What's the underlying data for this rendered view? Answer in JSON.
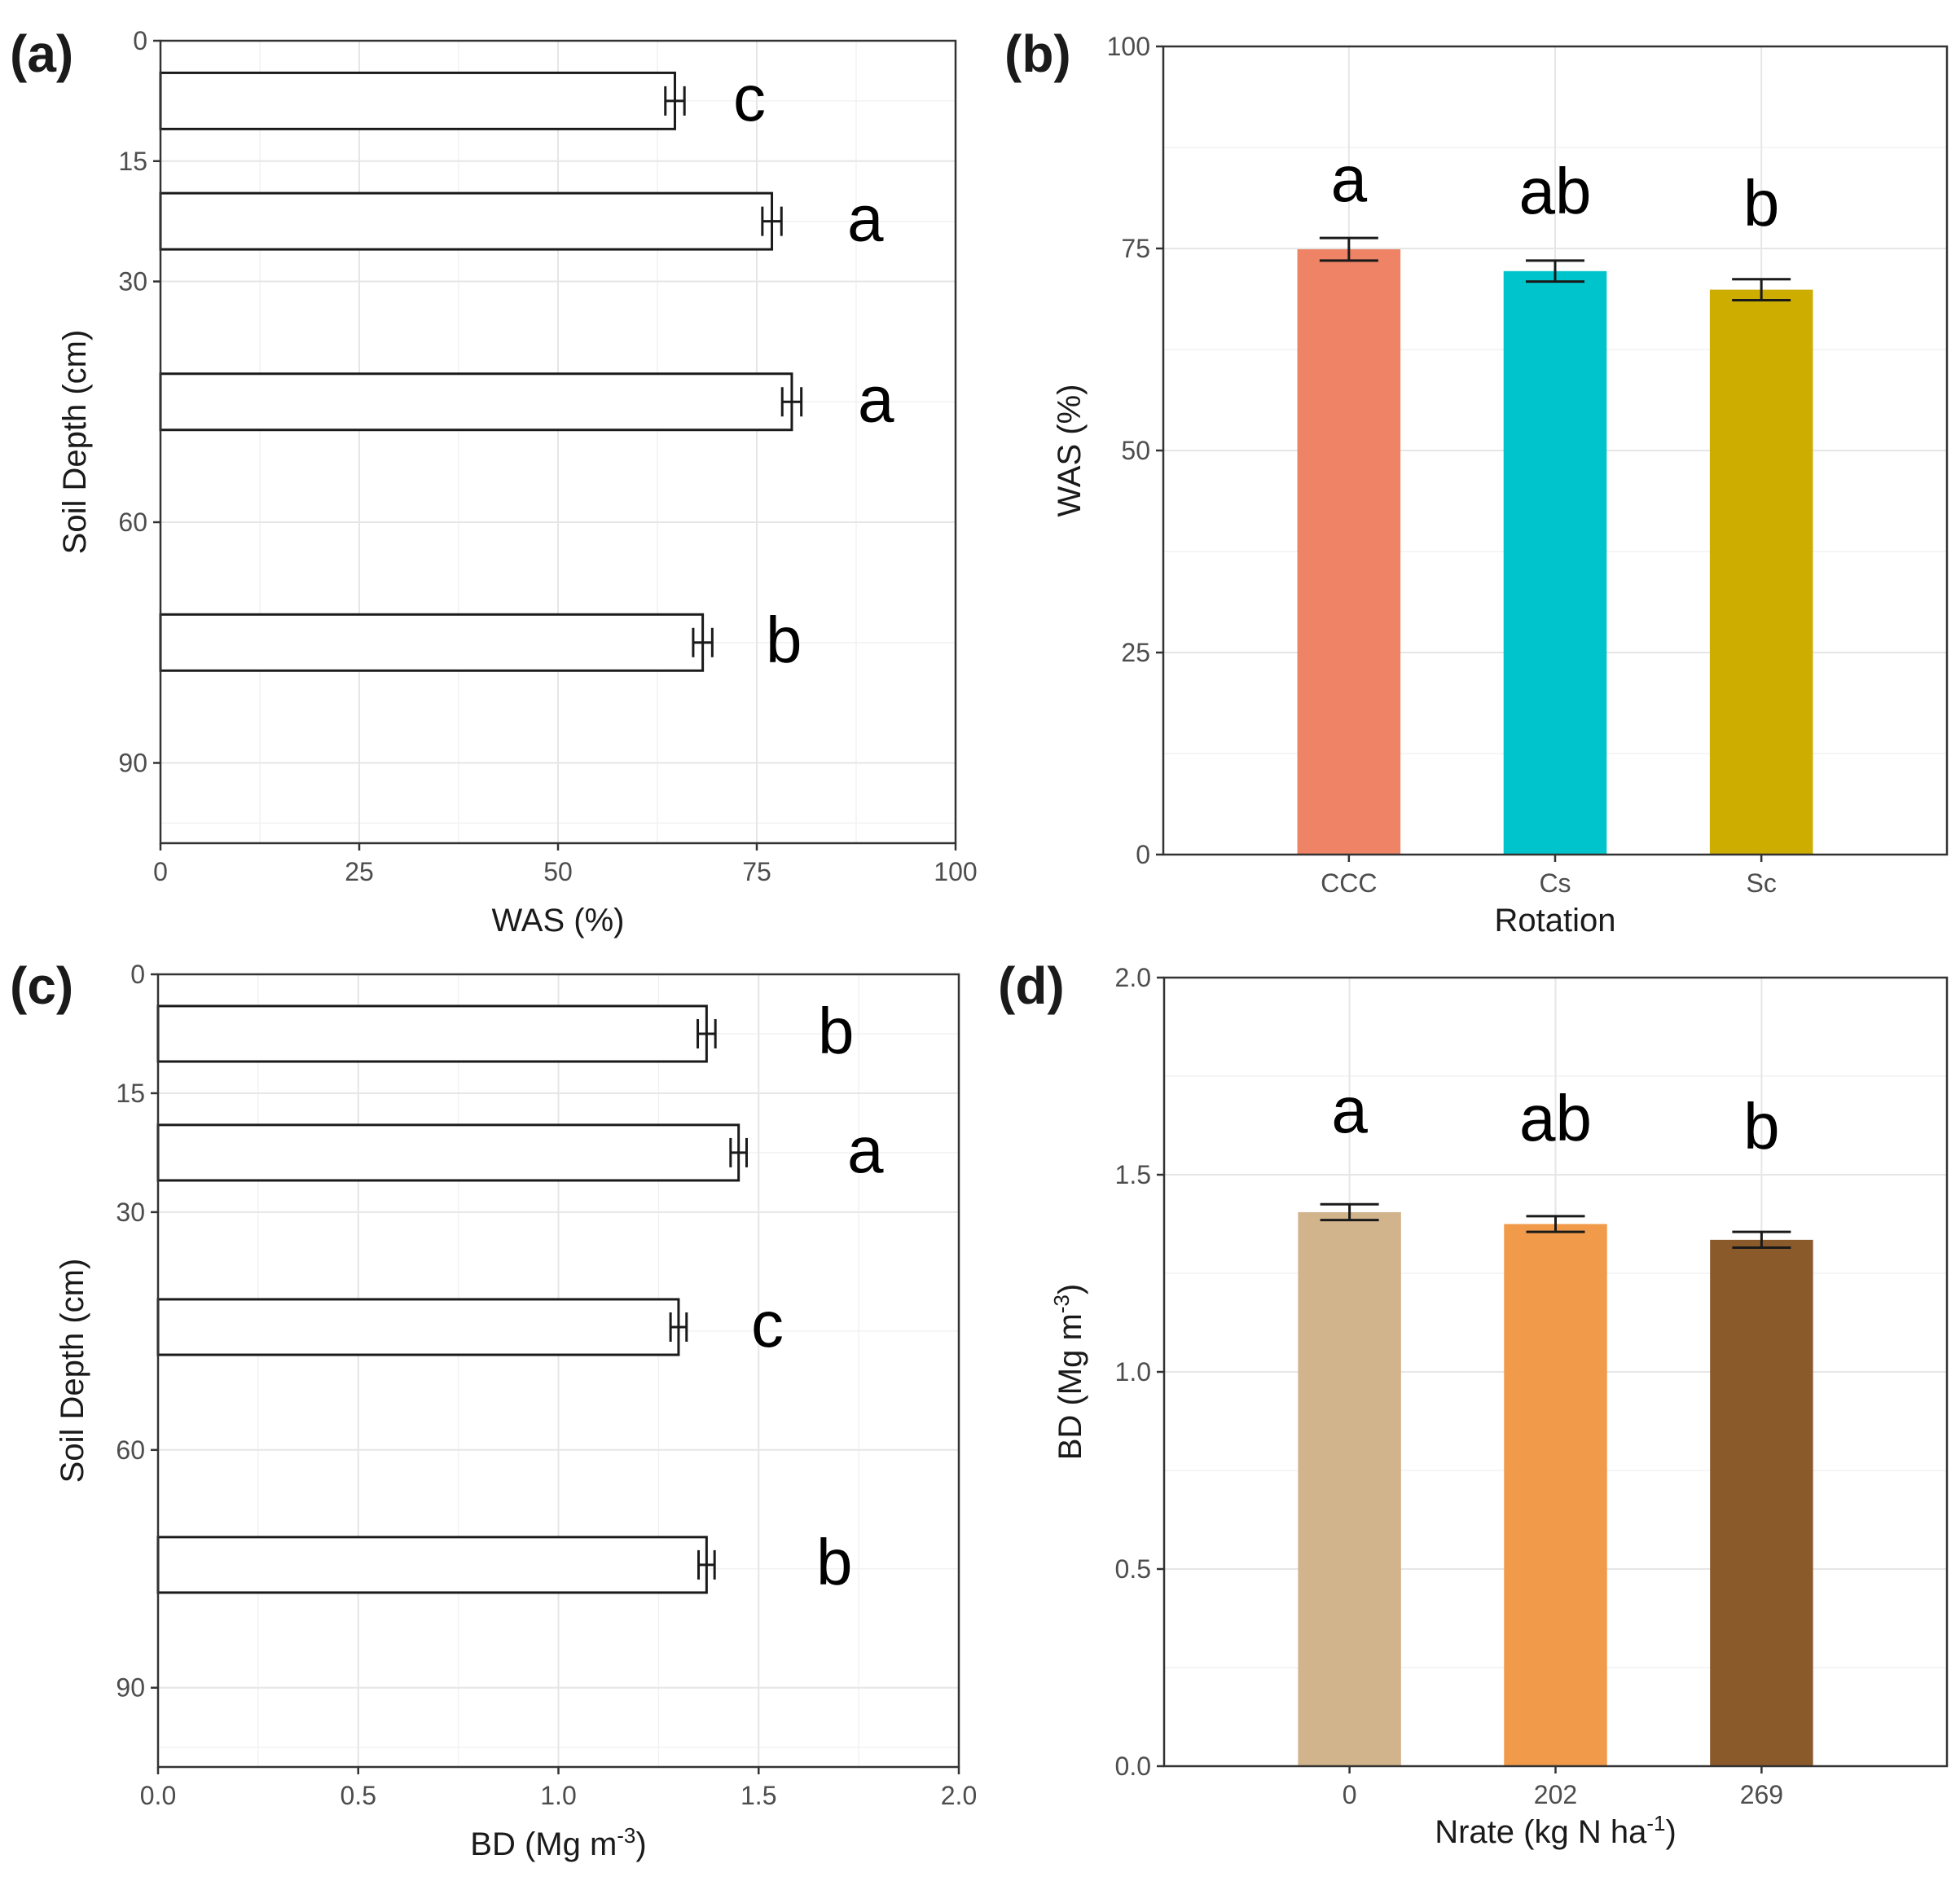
{
  "chart_data": [
    {
      "id": "a",
      "type": "bar",
      "orientation": "horizontal",
      "panel_label": "(a)",
      "xlabel": "WAS (%)",
      "ylabel": "Soil Depth (cm)",
      "xlim": [
        0,
        100
      ],
      "ylim": [
        100,
        0
      ],
      "x_ticks": [
        "0",
        "25",
        "50",
        "75",
        "100"
      ],
      "y_ticks": [
        "0",
        "15",
        "30",
        "60",
        "90"
      ],
      "grid": true,
      "bars": [
        {
          "y_range": [
            4,
            11
          ],
          "value": 64.7,
          "error": 1.2,
          "letter": "c"
        },
        {
          "y_range": [
            19,
            26
          ],
          "value": 76.9,
          "error": 1.2,
          "letter": "a"
        },
        {
          "y_range": [
            41.5,
            48.5
          ],
          "value": 79.4,
          "error": 1.2,
          "letter": "a"
        },
        {
          "y_range": [
            71.5,
            78.5
          ],
          "value": 68.2,
          "error": 1.2,
          "letter": "b"
        }
      ]
    },
    {
      "id": "b",
      "type": "bar",
      "orientation": "vertical",
      "panel_label": "(b)",
      "xlabel": "Rotation",
      "ylabel": "WAS (%)",
      "ylim": [
        0,
        100
      ],
      "y_ticks": [
        "0",
        "25",
        "50",
        "75",
        "100"
      ],
      "categories": [
        "CCC",
        "Cs",
        "Sc"
      ],
      "values": [
        74.9,
        72.2,
        69.9
      ],
      "errors": [
        1.4,
        1.3,
        1.3
      ],
      "letters": [
        "a",
        "ab",
        "b"
      ],
      "colors": [
        "#ee8366",
        "#00c4cb",
        "#ccad00"
      ],
      "grid": true
    },
    {
      "id": "c",
      "type": "bar",
      "orientation": "horizontal",
      "panel_label": "(c)",
      "xlabel": "BD (Mg m",
      "xlabel_sup": "-3",
      "xlabel_end": ")",
      "ylabel": "Soil Depth (cm)",
      "xlim": [
        0,
        2
      ],
      "ylim": [
        100,
        0
      ],
      "x_ticks": [
        "0.0",
        "0.5",
        "1.0",
        "1.5",
        "2.0"
      ],
      "y_ticks": [
        "0",
        "15",
        "30",
        "60",
        "90"
      ],
      "grid": true,
      "bars": [
        {
          "y_range": [
            4,
            11
          ],
          "value": 1.37,
          "error": 0.022,
          "letter": "b"
        },
        {
          "y_range": [
            19,
            26
          ],
          "value": 1.45,
          "error": 0.02,
          "letter": "a"
        },
        {
          "y_range": [
            41,
            48
          ],
          "value": 1.3,
          "error": 0.02,
          "letter": "c"
        },
        {
          "y_range": [
            71,
            78
          ],
          "value": 1.37,
          "error": 0.02,
          "letter": "b"
        }
      ]
    },
    {
      "id": "d",
      "type": "bar",
      "orientation": "vertical",
      "panel_label": "(d)",
      "xlabel": "Nrate (kg N ha",
      "xlabel_sup": "-1",
      "xlabel_end": ")",
      "ylabel": "BD (Mg m",
      "ylabel_sup": "-3",
      "ylabel_end": ")",
      "ylim": [
        0,
        2
      ],
      "y_ticks": [
        "0.0",
        "0.5",
        "1.0",
        "1.5",
        "2.0"
      ],
      "categories": [
        "0",
        "202",
        "269"
      ],
      "values": [
        1.405,
        1.375,
        1.335
      ],
      "errors": [
        0.02,
        0.02,
        0.02
      ],
      "letters": [
        "a",
        "ab",
        "b"
      ],
      "colors": [
        "#d2b48c",
        "#f09a4a",
        "#8b5a2b"
      ],
      "grid": true
    }
  ]
}
